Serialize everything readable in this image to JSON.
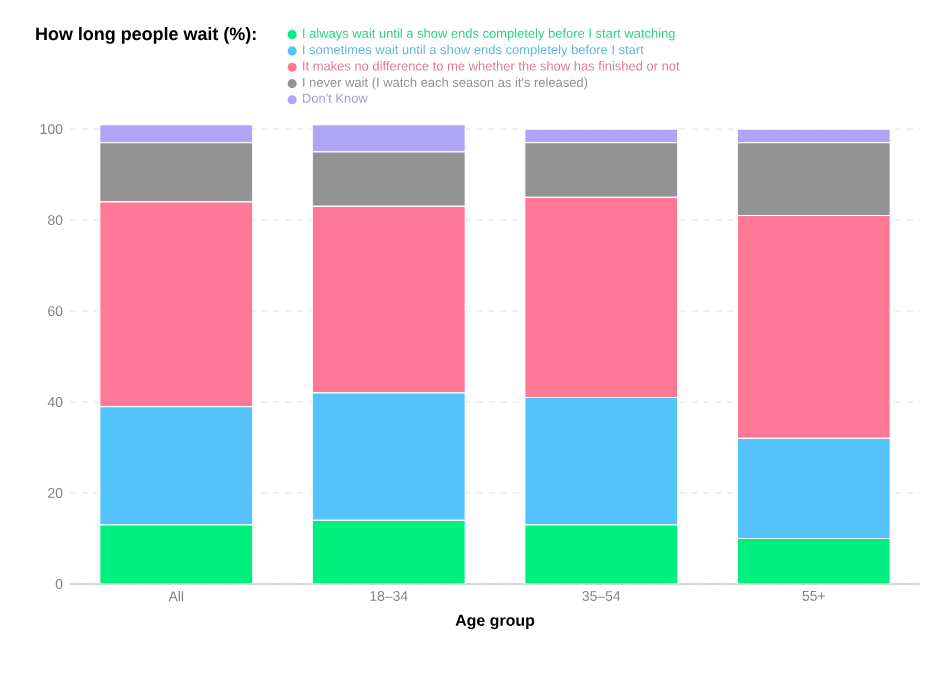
{
  "chart_data": {
    "type": "bar",
    "stacked": true,
    "title": "How long people wait (%):",
    "xlabel": "Age group",
    "categories": [
      "All",
      "18–34",
      "35–54",
      "55+"
    ],
    "series": [
      {
        "name": "I always wait until a show ends completely before I start watching",
        "color": "#00f080",
        "values": [
          13,
          14,
          13,
          10
        ]
      },
      {
        "name": "I sometimes wait until a show ends completely before I start",
        "color": "#55c3fb",
        "values": [
          26,
          28,
          28,
          22
        ]
      },
      {
        "name": "It makes no difference to me whether the show has finished or not",
        "color": "#ff7896",
        "values": [
          45,
          41,
          44,
          49
        ]
      },
      {
        "name": "I never wait (I watch each season as it's released)",
        "color": "#939393",
        "values": [
          13,
          12,
          12,
          16
        ]
      },
      {
        "name": "Don't Know",
        "color": "#b0a4f8",
        "values": [
          4,
          6,
          3,
          3
        ]
      }
    ],
    "ylim": [
      0,
      102
    ],
    "yticks": [
      0,
      20,
      40,
      60,
      80,
      100
    ],
    "grid": "y",
    "legend": "top"
  }
}
